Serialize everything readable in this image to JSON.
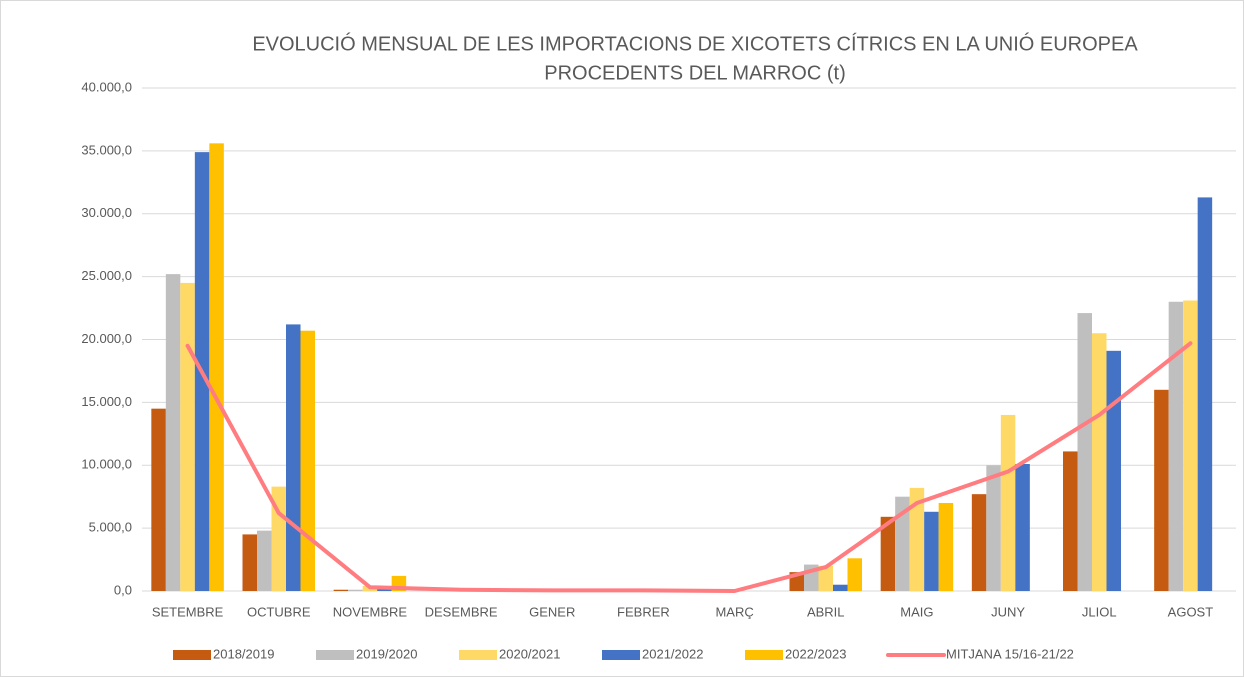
{
  "chart_data": {
    "type": "bar",
    "title": [
      "EVOLUCIÓ MENSUAL DE LES IMPORTACIONS DE XICOTETS CÍTRICS EN LA UNIÓ EUROPEA",
      "PROCEDENTS DEL MARROC (t)"
    ],
    "categories": [
      "SETEMBRE",
      "OCTUBRE",
      "NOVEMBRE",
      "DESEMBRE",
      "GENER",
      "FEBRER",
      "MARÇ",
      "ABRIL",
      "MAIG",
      "JUNY",
      "JLIOL",
      "AGOST"
    ],
    "series": [
      {
        "name": "2018/2019",
        "color": "#c55a11",
        "values": [
          14500,
          4500,
          100,
          0,
          0,
          0,
          0,
          1500,
          5900,
          7700,
          11100,
          16000
        ]
      },
      {
        "name": "2019/2020",
        "color": "#bfbfbf",
        "values": [
          25200,
          4800,
          100,
          0,
          0,
          0,
          0,
          2100,
          7500,
          10000,
          22100,
          23000
        ]
      },
      {
        "name": "2020/2021",
        "color": "#ffd966",
        "values": [
          24500,
          8300,
          400,
          0,
          0,
          0,
          0,
          2000,
          8200,
          14000,
          20500,
          23100
        ]
      },
      {
        "name": "2021/2022",
        "color": "#4472c4",
        "values": [
          34900,
          21200,
          400,
          0,
          0,
          0,
          0,
          500,
          6300,
          10100,
          19100,
          31300
        ]
      },
      {
        "name": "2022/2023",
        "color": "#ffc000",
        "values": [
          35600,
          20700,
          1200,
          0,
          0,
          0,
          0,
          2600,
          7000,
          null,
          null,
          null
        ]
      },
      {
        "name": "MITJANA 15/16-21/22",
        "color": "#ff7c80",
        "type": "line",
        "values": [
          19500,
          6200,
          300,
          100,
          50,
          50,
          0,
          1900,
          7000,
          9500,
          14000,
          19700
        ]
      }
    ],
    "ylim": [
      0,
      40000
    ],
    "yticks": [
      {
        "value": 0,
        "label": "0,0"
      },
      {
        "value": 5000,
        "label": "5.000,0"
      },
      {
        "value": 10000,
        "label": "10.000,0"
      },
      {
        "value": 15000,
        "label": "15.000,0"
      },
      {
        "value": 20000,
        "label": "20.000,0"
      },
      {
        "value": 25000,
        "label": "25.000,0"
      },
      {
        "value": 30000,
        "label": "30.000,0"
      },
      {
        "value": 35000,
        "label": "35.000,0"
      },
      {
        "value": 40000,
        "label": "40.000,0"
      }
    ],
    "grid": true,
    "legend": "bottom"
  }
}
